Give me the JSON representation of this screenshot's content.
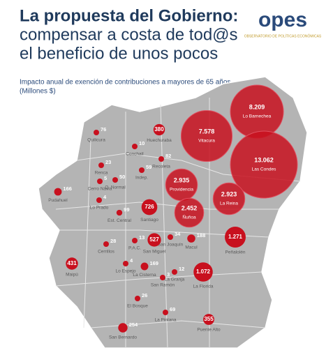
{
  "header": {
    "title_lines": [
      "La propuesta del Gobierno:",
      "compensar a costa de tod@s",
      "el beneficio de unos pocos"
    ],
    "logo": "opes",
    "logo_subtitle": "OBSERVATORIO DE POLÍTICAS ECONÓMICAS"
  },
  "subtitle_lines": [
    "Impacto anual de exención de contribuciones a mayores de 65 años",
    "(Millones $)"
  ],
  "map": {
    "color": "#c8101e",
    "comunas": [
      {
        "name": "Quilicura",
        "value": 76
      },
      {
        "name": "Huechuraba",
        "value": 380
      },
      {
        "name": "Conchalí",
        "value": 10
      },
      {
        "name": "Recoleta",
        "value": 82
      },
      {
        "name": "Renca",
        "value": 23
      },
      {
        "name": "Indep.",
        "value": 59
      },
      {
        "name": "Cerro Navia",
        "value": 5
      },
      {
        "name": "Q. Normal",
        "value": 50
      },
      {
        "name": "Pudahuel",
        "value": 166
      },
      {
        "name": "Lo Prado",
        "value": 4
      },
      {
        "name": "Est. Central",
        "value": 99
      },
      {
        "name": "Santiago",
        "value": 726
      },
      {
        "name": "Providencia",
        "value": 2935,
        "value_label": "2.935"
      },
      {
        "name": "Vitacura",
        "value": 7578,
        "value_label": "7.578"
      },
      {
        "name": "Lo Barnechea",
        "value": 8209,
        "value_label": "8.209"
      },
      {
        "name": "Las Condes",
        "value": 13062,
        "value_label": "13.062"
      },
      {
        "name": "La Reina",
        "value": 2923,
        "value_label": "2.923"
      },
      {
        "name": "Ñuñoa",
        "value": 2452,
        "value_label": "2.452"
      },
      {
        "name": "Peñalolén",
        "value": 1271,
        "value_label": "1.271"
      },
      {
        "name": "Macul",
        "value": 188
      },
      {
        "name": "San Joaquín",
        "value": 34
      },
      {
        "name": "San Miguel",
        "value": 527
      },
      {
        "name": "P.A.C.",
        "value": 13
      },
      {
        "name": "Cerrillos",
        "value": 28
      },
      {
        "name": "Maipú",
        "value": 431
      },
      {
        "name": "Lo Espejo",
        "value": 4
      },
      {
        "name": "La Cisterna",
        "value": 169
      },
      {
        "name": "San Ramón",
        "value": 3
      },
      {
        "name": "La Granja",
        "value": 12
      },
      {
        "name": "La Florida",
        "value": 1072,
        "value_label": "1.072"
      },
      {
        "name": "El Bosque",
        "value": 26
      },
      {
        "name": "La Pintana",
        "value": 69
      },
      {
        "name": "Puente Alto",
        "value": 355
      },
      {
        "name": "San Bernardo",
        "value": 254
      }
    ]
  }
}
